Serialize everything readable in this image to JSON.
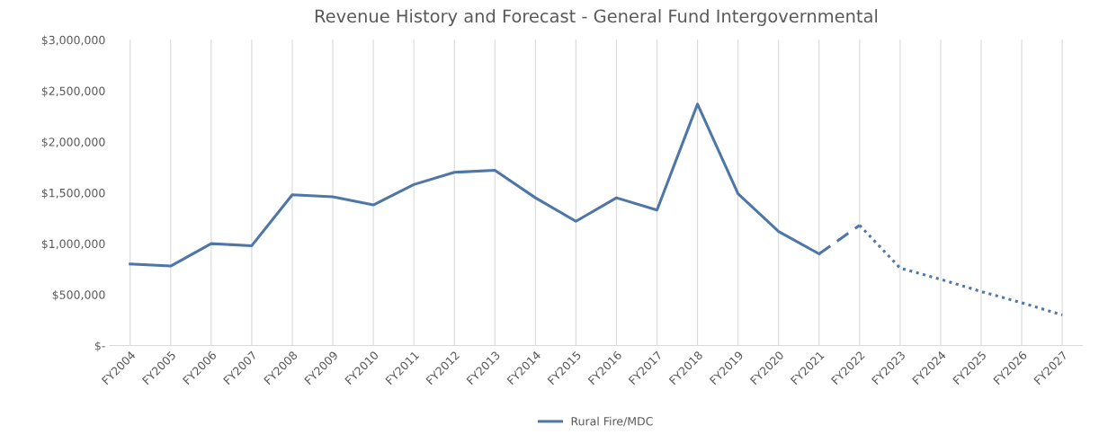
{
  "chart_data": {
    "type": "line",
    "title": "Revenue History and Forecast - General Fund Intergovernmental",
    "categories": [
      "FY2004",
      "FY2005",
      "FY2006",
      "FY2007",
      "FY2008",
      "FY2009",
      "FY2010",
      "FY2011",
      "FY2012",
      "FY2013",
      "FY2014",
      "FY2015",
      "FY2016",
      "FY2017",
      "FY2018",
      "FY2019",
      "FY2020",
      "FY2021",
      "FY2022",
      "FY2023",
      "FY2024",
      "FY2025",
      "FY2026",
      "FY2027"
    ],
    "series": [
      {
        "name": "Rural Fire/MDC",
        "color": "#4e77a8",
        "line_style": "solid",
        "values": [
          800000,
          780000,
          1000000,
          980000,
          1480000,
          1460000,
          1380000,
          1580000,
          1700000,
          1720000,
          1450000,
          1220000,
          1450000,
          1330000,
          2370000,
          1490000,
          1120000,
          900000,
          null,
          null,
          null,
          null,
          null,
          null
        ]
      },
      {
        "color": "#4e77a8",
        "line_style": "dashed",
        "values": [
          null,
          null,
          null,
          null,
          null,
          null,
          null,
          null,
          null,
          null,
          null,
          null,
          null,
          null,
          null,
          null,
          null,
          900000,
          1180000,
          null,
          null,
          null,
          null,
          null
        ]
      },
      {
        "color": "#4e77a8",
        "line_style": "dotted",
        "values": [
          null,
          null,
          null,
          null,
          null,
          null,
          null,
          null,
          null,
          null,
          null,
          null,
          null,
          null,
          null,
          null,
          null,
          null,
          1180000,
          760000,
          650000,
          530000,
          420000,
          300000
        ]
      }
    ],
    "ylim": [
      0,
      3000000
    ],
    "yticks": [
      {
        "value": 0,
        "label": "$-"
      },
      {
        "value": 500000,
        "label": "$500,000"
      },
      {
        "value": 1000000,
        "label": "$1,000,000"
      },
      {
        "value": 1500000,
        "label": "$1,500,000"
      },
      {
        "value": 2000000,
        "label": "$2,000,000"
      },
      {
        "value": 2500000,
        "label": "$2,500,000"
      },
      {
        "value": 3000000,
        "label": "$3,000,000"
      }
    ],
    "grid": "x",
    "legend": "bottom",
    "marker": "none"
  }
}
